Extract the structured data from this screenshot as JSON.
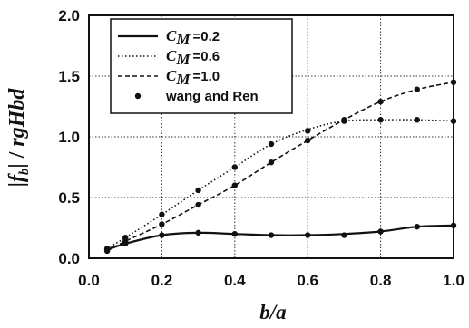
{
  "chart_data": {
    "type": "line",
    "xlabel": "b/a",
    "ylabel": "|f_b| / rgHbd",
    "xlim": [
      0.0,
      1.0
    ],
    "ylim": [
      0.0,
      2.0
    ],
    "xticks": [
      "0.0",
      "0.2",
      "0.4",
      "0.6",
      "0.8",
      "1.0"
    ],
    "yticks": [
      "0.0",
      "0.5",
      "1.0",
      "1.5",
      "2.0"
    ],
    "grid": true,
    "legend_position": "top-left",
    "series": [
      {
        "name": "C_M =0.2",
        "legend_value": "=0.2",
        "style": "solid",
        "color": "#111111",
        "x": [
          0.05,
          0.1,
          0.2,
          0.3,
          0.4,
          0.5,
          0.6,
          0.7,
          0.8,
          0.9,
          1.0
        ],
        "y": [
          0.07,
          0.12,
          0.19,
          0.21,
          0.2,
          0.19,
          0.19,
          0.2,
          0.22,
          0.26,
          0.27
        ]
      },
      {
        "name": "C_M =0.6",
        "legend_value": "=0.6",
        "style": "dotted",
        "color": "#111111",
        "x": [
          0.05,
          0.1,
          0.2,
          0.3,
          0.4,
          0.5,
          0.6,
          0.7,
          0.8,
          0.9,
          1.0
        ],
        "y": [
          0.08,
          0.17,
          0.36,
          0.56,
          0.75,
          0.94,
          1.06,
          1.13,
          1.14,
          1.14,
          1.13
        ]
      },
      {
        "name": "C_M =1.0",
        "legend_value": "=1.0",
        "style": "dashed",
        "color": "#111111",
        "x": [
          0.05,
          0.1,
          0.2,
          0.3,
          0.4,
          0.5,
          0.6,
          0.7,
          0.8,
          0.9,
          1.0
        ],
        "y": [
          0.06,
          0.14,
          0.28,
          0.44,
          0.6,
          0.79,
          0.97,
          1.14,
          1.29,
          1.39,
          1.45
        ]
      }
    ],
    "markers": {
      "name": "wang and Ren",
      "style": "dot",
      "color": "#111111",
      "points": [
        [
          0.05,
          0.07
        ],
        [
          0.1,
          0.12
        ],
        [
          0.2,
          0.19
        ],
        [
          0.3,
          0.21
        ],
        [
          0.4,
          0.2
        ],
        [
          0.5,
          0.19
        ],
        [
          0.6,
          0.19
        ],
        [
          0.7,
          0.19
        ],
        [
          0.8,
          0.22
        ],
        [
          0.9,
          0.26
        ],
        [
          1.0,
          0.27
        ],
        [
          0.05,
          0.08
        ],
        [
          0.1,
          0.17
        ],
        [
          0.2,
          0.36
        ],
        [
          0.3,
          0.56
        ],
        [
          0.4,
          0.75
        ],
        [
          0.5,
          0.94
        ],
        [
          0.6,
          1.05
        ],
        [
          0.7,
          1.13
        ],
        [
          0.8,
          1.14
        ],
        [
          0.9,
          1.14
        ],
        [
          1.0,
          1.13
        ],
        [
          0.05,
          0.06
        ],
        [
          0.1,
          0.14
        ],
        [
          0.2,
          0.28
        ],
        [
          0.3,
          0.44
        ],
        [
          0.4,
          0.6
        ],
        [
          0.5,
          0.79
        ],
        [
          0.6,
          0.97
        ],
        [
          0.7,
          1.14
        ],
        [
          0.8,
          1.29
        ],
        [
          0.9,
          1.39
        ],
        [
          1.0,
          1.45
        ]
      ]
    }
  }
}
